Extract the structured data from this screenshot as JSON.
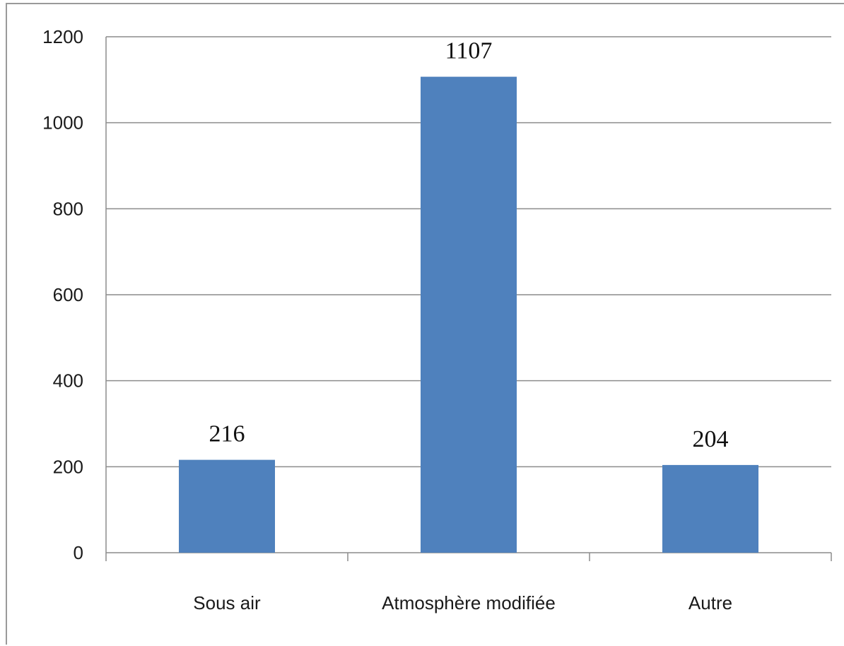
{
  "chart_data": {
    "type": "bar",
    "categories": [
      "Sous air",
      "Atmosphère modifiée",
      "Autre"
    ],
    "values": [
      216,
      1107,
      204
    ],
    "data_labels": [
      "216",
      "1107",
      "204"
    ],
    "y_ticks": [
      "0",
      "200",
      "400",
      "600",
      "800",
      "1000",
      "1200"
    ],
    "ylim": [
      0,
      1200
    ],
    "grid": true,
    "legend": "none",
    "bar_color": "#4f81bd",
    "grid_color": "#8c8c8c"
  }
}
